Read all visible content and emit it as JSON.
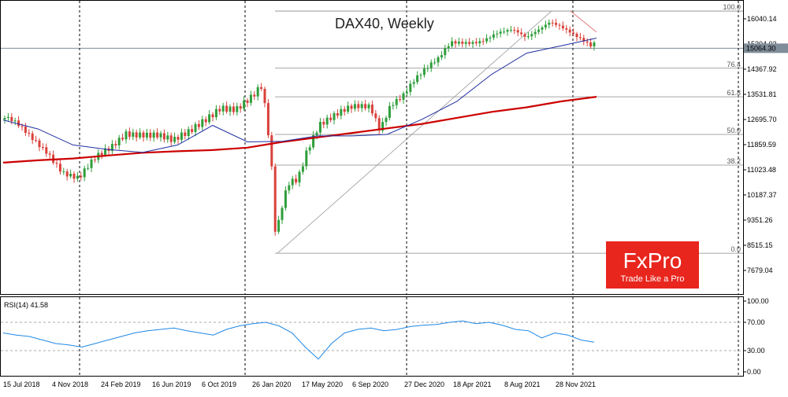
{
  "chart_data": {
    "type": "candlestick",
    "title": "DAX40, Weekly",
    "price_axis": {
      "ticks": [
        "16040.14",
        "15204.03",
        "14367.92",
        "13531.81",
        "12695.70",
        "11859.59",
        "11023.48",
        "10187.37",
        "9351.26",
        "8515.15",
        "7679.04"
      ],
      "tick_values": [
        16040.14,
        15204.03,
        14367.92,
        13531.81,
        12695.7,
        11859.59,
        11023.48,
        10187.37,
        9351.26,
        8515.15,
        7679.04
      ],
      "current_price_label": "15064.30",
      "current_price": 15064.3
    },
    "x_axis_ticks": [
      "15 Jul 2018",
      "4 Nov 2018",
      "24 Feb 2019",
      "16 Jun 2019",
      "6 Oct 2019",
      "26 Jan 2020",
      "17 May 2020",
      "6 Sep 2020",
      "27 Dec 2020",
      "18 Apr 2021",
      "8 Aug 2021",
      "28 Nov 2021"
    ],
    "fibonacci": {
      "levels": [
        "100.0",
        "76.4",
        "61.8",
        "50.0",
        "38.2",
        "0.0"
      ],
      "level_values": [
        16300,
        14400,
        13450,
        12200,
        11180,
        8250
      ]
    },
    "moving_averages": [
      {
        "color": "#cc0000",
        "values": [
          11260,
          11340,
          11400,
          11500,
          11590,
          11640,
          11680,
          11760,
          11950,
          12100,
          12250,
          12400,
          12550,
          12750,
          12950,
          13100,
          13300,
          13450
        ]
      },
      {
        "color": "#1f2fa0",
        "values": [
          12680,
          12380,
          11850,
          11700,
          11600,
          11850,
          12500,
          11950,
          11970,
          12150,
          12150,
          12200,
          12700,
          13300,
          14200,
          14900,
          15150,
          15400
        ]
      }
    ],
    "rsi": {
      "label": "RSI(14) 41.58",
      "ticks": [
        "100.00",
        "70.00",
        "30.00",
        "0.00"
      ],
      "levels": [
        70,
        30
      ],
      "values": [
        55,
        52,
        50,
        45,
        40,
        38,
        35,
        40,
        45,
        50,
        55,
        58,
        60,
        62,
        58,
        55,
        52,
        60,
        65,
        68,
        70,
        65,
        55,
        35,
        18,
        40,
        55,
        60,
        62,
        58,
        60,
        64,
        66,
        67,
        70,
        72,
        68,
        70,
        66,
        60,
        58,
        48,
        55,
        52,
        45,
        42
      ]
    }
  },
  "branding": {
    "logo_text": "FxPro",
    "tagline": "Trade Like a Pro",
    "logo_color": "#e8261e"
  }
}
